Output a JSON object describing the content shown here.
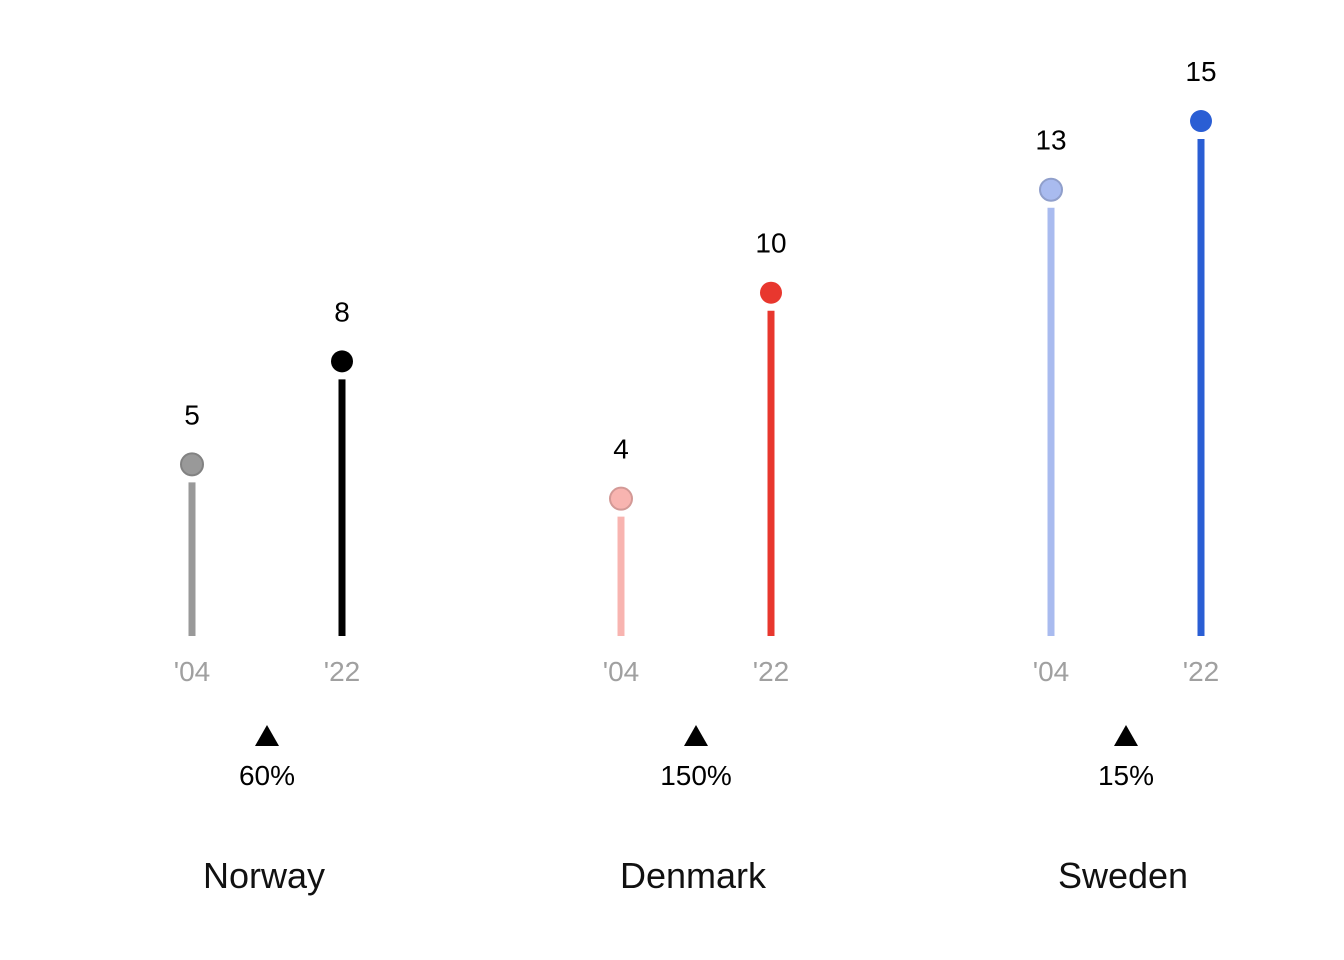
{
  "chart_data": {
    "type": "lollipop",
    "title": "",
    "xlabel": "",
    "ylabel": "",
    "ylim": [
      0,
      15
    ],
    "grid": false,
    "legend": "none",
    "period_labels": [
      "'04",
      "'22"
    ],
    "groups": [
      {
        "name": "Norway",
        "values": [
          5,
          8
        ],
        "value_labels": [
          "5",
          "8"
        ],
        "change_label": "60%",
        "change_direction": "up",
        "colors": [
          "#999999",
          "#000000"
        ]
      },
      {
        "name": "Denmark",
        "values": [
          4,
          10
        ],
        "value_labels": [
          "4",
          "10"
        ],
        "change_label": "150%",
        "change_direction": "up",
        "colors": [
          "#f8b4b0",
          "#e8372e"
        ]
      },
      {
        "name": "Sweden",
        "values": [
          13,
          15
        ],
        "value_labels": [
          "13",
          "15"
        ],
        "change_label": "15%",
        "change_direction": "up",
        "colors": [
          "#a9bbef",
          "#2a5ed4"
        ]
      }
    ]
  }
}
